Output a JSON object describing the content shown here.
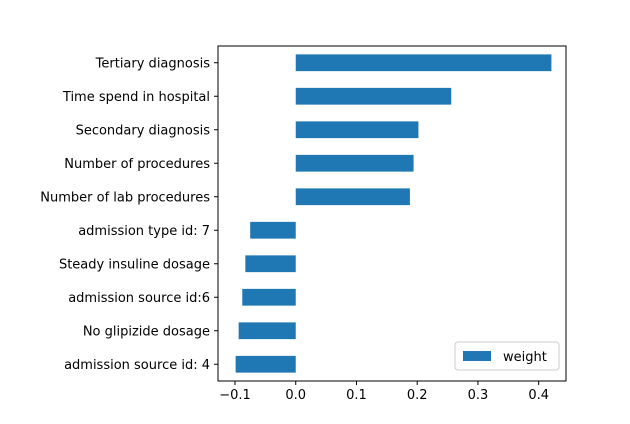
{
  "chart_data": {
    "type": "bar",
    "orientation": "horizontal",
    "categories": [
      "Tertiary diagnosis",
      "Time spend in hospital",
      "Secondary diagnosis",
      "Number of procedures",
      "Number of lab procedures",
      "admission type id: 7",
      "Steady insuline dosage",
      "admission source id:6",
      "No glipizide dosage",
      "admission source id: 4"
    ],
    "series": [
      {
        "name": "weight",
        "values": [
          0.421,
          0.256,
          0.202,
          0.194,
          0.188,
          -0.075,
          -0.083,
          -0.088,
          -0.094,
          -0.099
        ],
        "color": "#1f77b4"
      }
    ],
    "xlim": [
      -0.128,
      0.445
    ],
    "xticks": [
      -0.1,
      0.0,
      0.1,
      0.2,
      0.3,
      0.4
    ],
    "xtick_labels": [
      "−0.1",
      "0.0",
      "0.1",
      "0.2",
      "0.3",
      "0.4"
    ],
    "title": "",
    "xlabel": "",
    "ylabel": "",
    "grid": false,
    "legend_position": "lower-right"
  }
}
